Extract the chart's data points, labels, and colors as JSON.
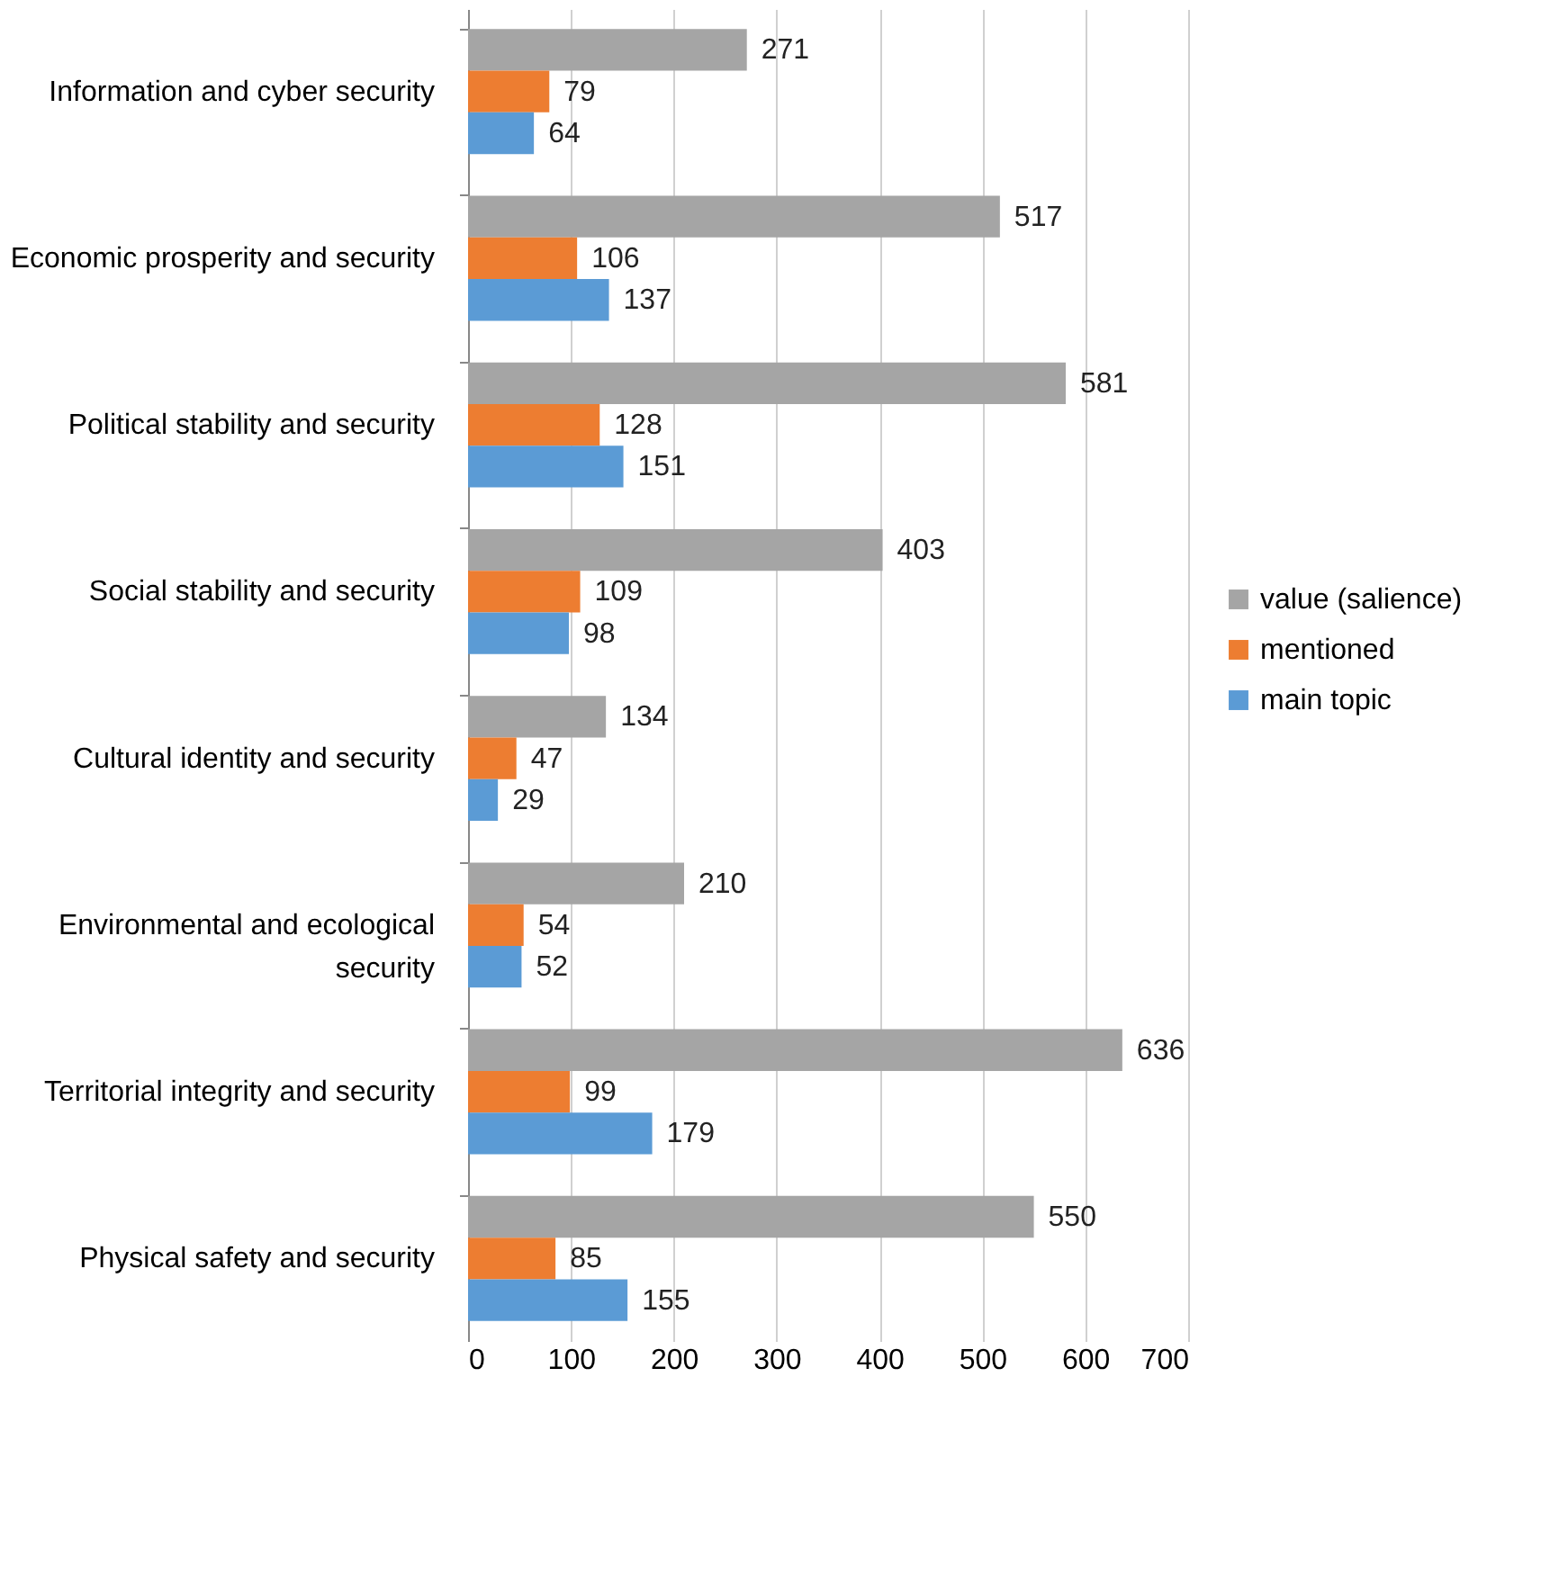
{
  "chart_data": {
    "type": "bar",
    "orientation": "horizontal",
    "categories": [
      "Information and cyber security",
      "Economic prosperity and security",
      "Political stability and security",
      "Social stability and security",
      "Cultural identity and security",
      "Environmental and ecological security",
      "Territorial integrity and security",
      "Physical safety and security"
    ],
    "series": [
      {
        "name": "value (salience)",
        "color": "#a5a5a5",
        "values": [
          271,
          517,
          581,
          403,
          134,
          210,
          636,
          550
        ]
      },
      {
        "name": "mentioned",
        "color": "#ed7d31",
        "values": [
          79,
          106,
          128,
          109,
          47,
          54,
          99,
          85
        ]
      },
      {
        "name": "main topic",
        "color": "#5b9bd5",
        "values": [
          64,
          137,
          151,
          98,
          29,
          52,
          179,
          155
        ]
      }
    ],
    "xlim": [
      0,
      700
    ],
    "xticks": [
      0,
      100,
      200,
      300,
      400,
      500,
      600,
      700
    ],
    "grid": "x",
    "legend": "right",
    "data_labels": true
  }
}
